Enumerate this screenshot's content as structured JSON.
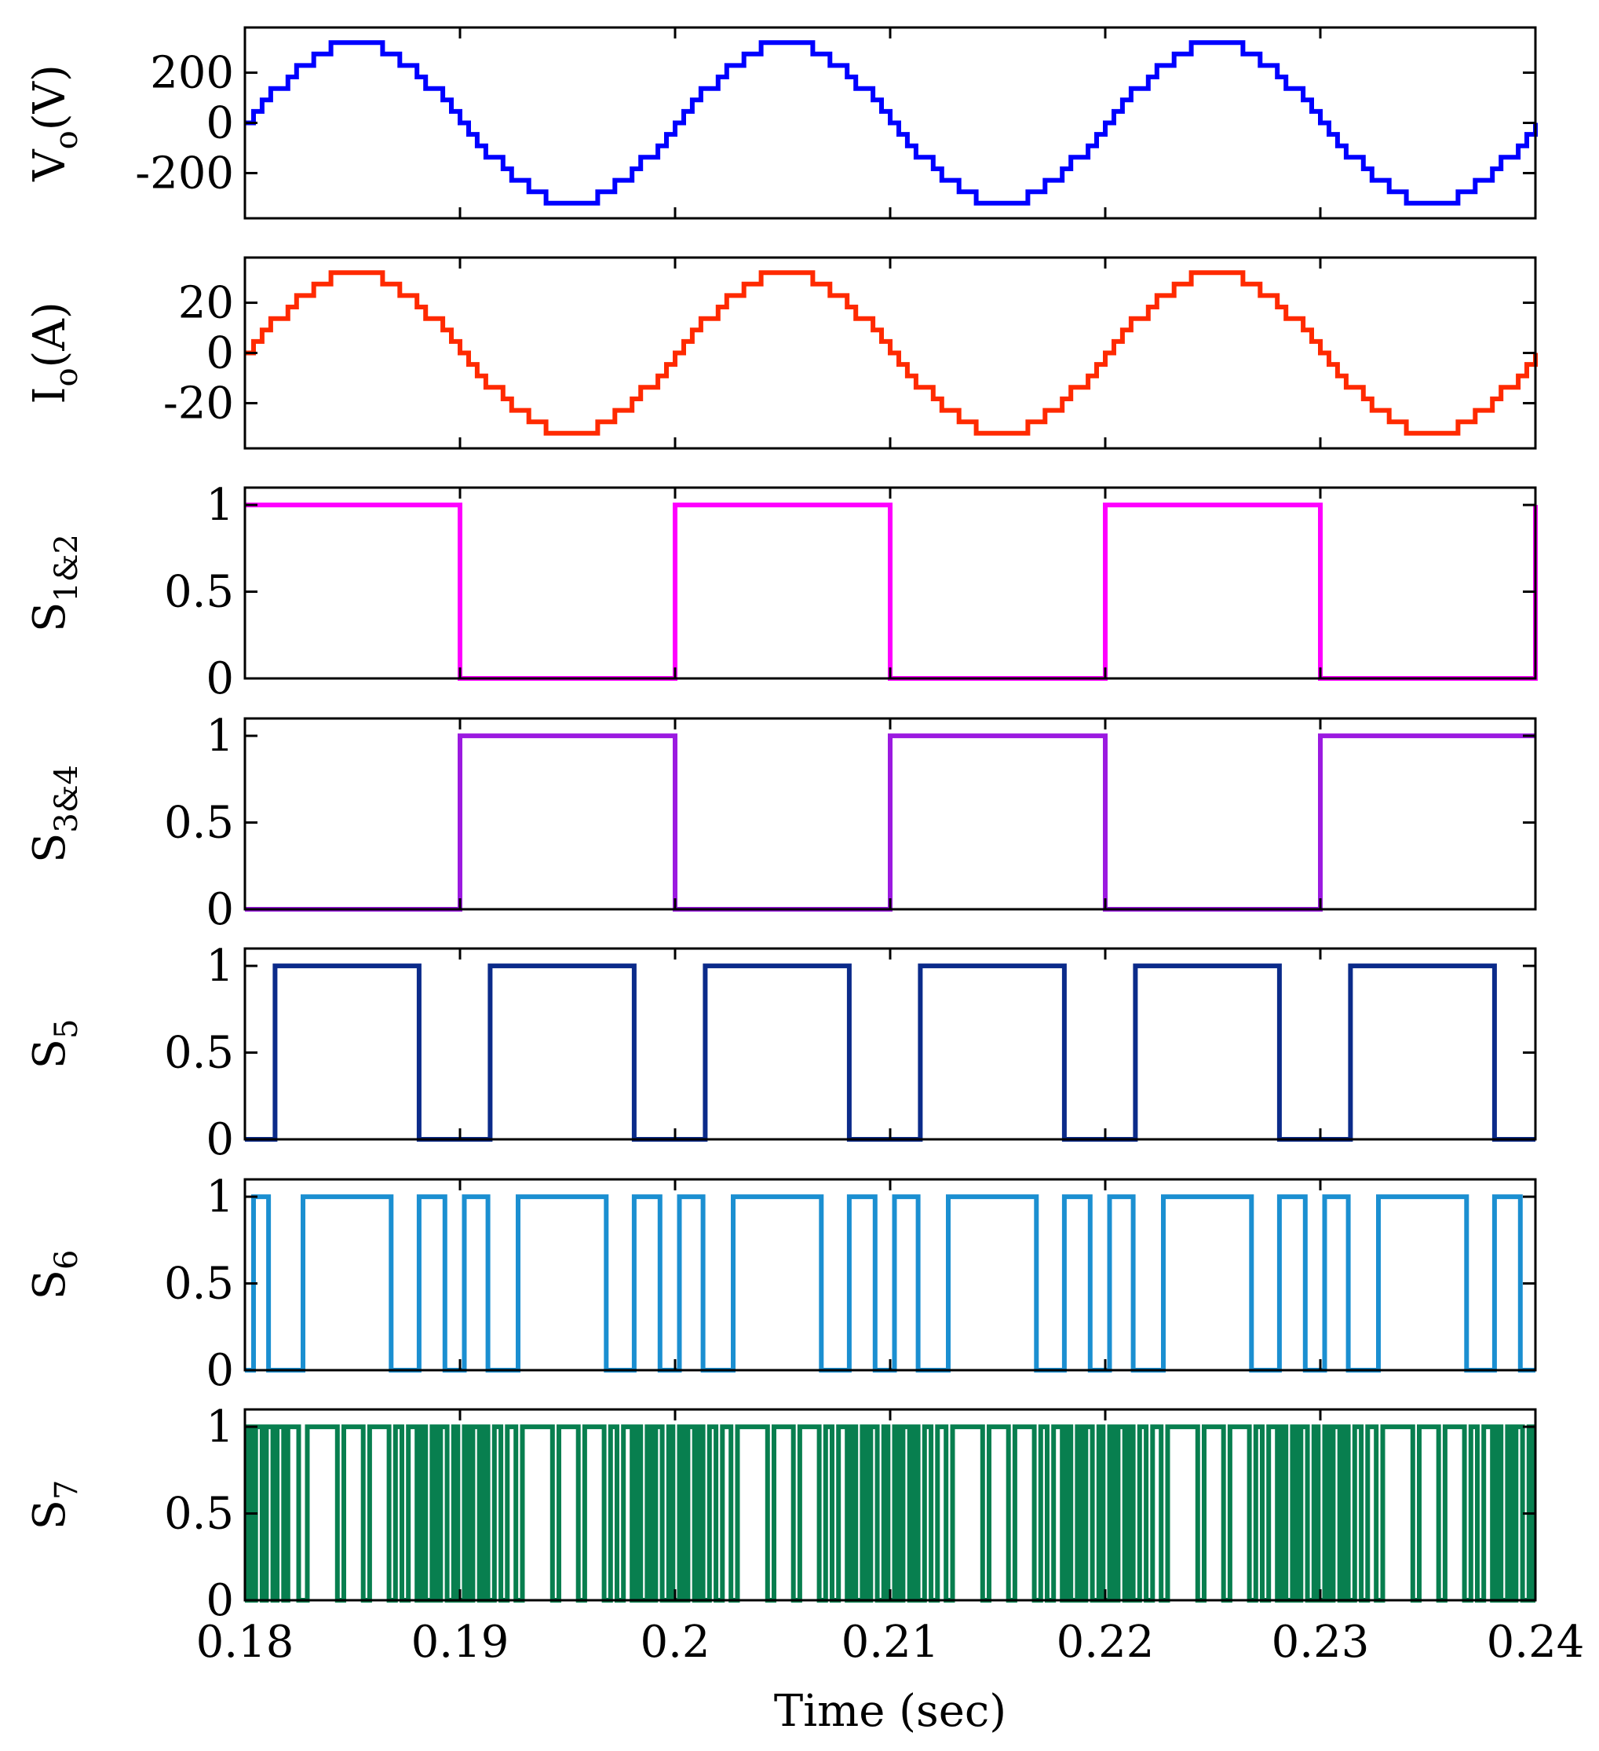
{
  "chart_data": [
    {
      "type": "line",
      "ylabel": "V",
      "ylabel_sub": "o",
      "ylabel_unit": "(V)",
      "color": "#0000ff",
      "ylim": [
        -380,
        380
      ],
      "yticks": [
        200,
        0,
        -200
      ],
      "ytick_labels": [
        "200",
        "0",
        "-200"
      ],
      "waveform": "staircase-sine",
      "amplitude": 320,
      "frequency_hz": 50,
      "levels": 15,
      "x": [
        0.18,
        0.24
      ]
    },
    {
      "type": "line",
      "ylabel": "I",
      "ylabel_sub": "o",
      "ylabel_unit": "(A)",
      "color": "#ff2a00",
      "ylim": [
        -38,
        38
      ],
      "yticks": [
        20,
        0,
        -20
      ],
      "ytick_labels": [
        "20",
        "0",
        "-20"
      ],
      "waveform": "staircase-sine",
      "amplitude": 32,
      "frequency_hz": 50,
      "levels": 15,
      "x": [
        0.18,
        0.24
      ]
    },
    {
      "type": "line",
      "ylabel": "S",
      "ylabel_sub": "1&2",
      "color": "#ff00ff",
      "ylim": [
        0,
        1.1
      ],
      "yticks": [
        1,
        0.5,
        0
      ],
      "ytick_labels": [
        "1",
        "0.5",
        "0"
      ],
      "waveform": "square",
      "high": 1,
      "low": 0,
      "transitions": [
        0.19,
        0.2,
        0.21,
        0.22,
        0.23,
        0.24
      ],
      "initial": 1
    },
    {
      "type": "line",
      "ylabel": "S",
      "ylabel_sub": "3&4",
      "color": "#9b1ae0",
      "ylim": [
        0,
        1.1
      ],
      "yticks": [
        1,
        0.5,
        0
      ],
      "ytick_labels": [
        "1",
        "0.5",
        "0"
      ],
      "waveform": "square",
      "high": 1,
      "low": 0,
      "transitions": [
        0.19,
        0.2,
        0.21,
        0.22,
        0.23
      ],
      "initial": 0
    },
    {
      "type": "line",
      "ylabel": "S",
      "ylabel_sub": "5",
      "color": "#0b2b8a",
      "ylim": [
        0,
        1.1
      ],
      "yticks": [
        1,
        0.5,
        0
      ],
      "ytick_labels": [
        "1",
        "0.5",
        "0"
      ],
      "waveform": "square",
      "high": 1,
      "low": 0,
      "transitions": [
        0.1814,
        0.1881,
        0.1914,
        0.1981,
        0.2014,
        0.2081,
        0.2114,
        0.2181,
        0.2214,
        0.2281,
        0.2314,
        0.2381
      ],
      "initial": 0
    },
    {
      "type": "line",
      "ylabel": "S",
      "ylabel_sub": "6",
      "color": "#1b8fd1",
      "ylim": [
        0,
        1.1
      ],
      "yticks": [
        1,
        0.5,
        0
      ],
      "ytick_labels": [
        "1",
        "0.5",
        "0"
      ],
      "waveform": "square",
      "high": 1,
      "low": 0,
      "transitions": [
        0.1804,
        0.1811,
        0.1827,
        0.1868,
        0.1881,
        0.1893,
        0.1902,
        0.1913,
        0.1927,
        0.1968,
        0.1981,
        0.1993,
        0.2002,
        0.2013,
        0.2027,
        0.2068,
        0.2081,
        0.2093,
        0.2102,
        0.2113,
        0.2127,
        0.2168,
        0.2181,
        0.2193,
        0.2202,
        0.2213,
        0.2227,
        0.2268,
        0.2281,
        0.2293,
        0.2302,
        0.2313,
        0.2327,
        0.2368,
        0.2381,
        0.2393
      ],
      "initial": 0
    },
    {
      "type": "line",
      "ylabel": "S",
      "ylabel_sub": "7",
      "color": "#087f4f",
      "ylim": [
        0,
        1.1
      ],
      "yticks": [
        1,
        0.5,
        0
      ],
      "ytick_labels": [
        "1",
        "0.5",
        "0"
      ],
      "waveform": "square",
      "high": 1,
      "low": 0,
      "transitions": [
        0.1801,
        0.1803,
        0.1805,
        0.1808,
        0.181,
        0.1813,
        0.1815,
        0.1818,
        0.182,
        0.1825,
        0.1829,
        0.1843,
        0.1846,
        0.1855,
        0.1858,
        0.1867,
        0.187,
        0.1873,
        0.1876,
        0.188,
        0.1882,
        0.1884,
        0.1887,
        0.1889,
        0.1891,
        0.1894,
        0.1897,
        0.1899,
        0.1902,
        0.1904,
        0.1906,
        0.1909,
        0.1911,
        0.1913,
        0.1916,
        0.1919,
        0.1922,
        0.1926,
        0.1929,
        0.1943,
        0.1946,
        0.1955,
        0.1958,
        0.1967,
        0.197,
        0.1973,
        0.1976,
        0.198,
        0.1982,
        0.1984,
        0.1987,
        0.1989,
        0.1991,
        0.1994,
        0.1997,
        0.1999,
        0.2002,
        0.2004,
        0.2006,
        0.2009,
        0.2011,
        0.2013,
        0.2016,
        0.2019,
        0.2022,
        0.2026,
        0.2029,
        0.2043,
        0.2046,
        0.2055,
        0.2058,
        0.2067,
        0.207,
        0.2073,
        0.2076,
        0.208,
        0.2082,
        0.2084,
        0.2087,
        0.2089,
        0.2091,
        0.2094,
        0.2097,
        0.2099,
        0.2102,
        0.2104,
        0.2106,
        0.2109,
        0.2111,
        0.2113,
        0.2116,
        0.2119,
        0.2122,
        0.2126,
        0.2129,
        0.2143,
        0.2146,
        0.2155,
        0.2158,
        0.2167,
        0.217,
        0.2173,
        0.2176,
        0.218,
        0.2182,
        0.2184,
        0.2187,
        0.2189,
        0.2191,
        0.2194,
        0.2197,
        0.2199,
        0.2202,
        0.2204,
        0.2206,
        0.2209,
        0.2211,
        0.2213,
        0.2216,
        0.2219,
        0.2222,
        0.2226,
        0.2229,
        0.2243,
        0.2246,
        0.2255,
        0.2258,
        0.2267,
        0.227,
        0.2273,
        0.2276,
        0.228,
        0.2282,
        0.2284,
        0.2287,
        0.2289,
        0.2291,
        0.2294,
        0.2297,
        0.2299,
        0.2302,
        0.2304,
        0.2306,
        0.2309,
        0.2311,
        0.2313,
        0.2316,
        0.2319,
        0.2322,
        0.2326,
        0.2329,
        0.2343,
        0.2346,
        0.2355,
        0.2358,
        0.2367,
        0.237,
        0.2373,
        0.2376,
        0.238,
        0.2382,
        0.2384,
        0.2387,
        0.2389,
        0.2391,
        0.2394,
        0.2397,
        0.2399
      ],
      "initial": 0
    }
  ],
  "xaxis": {
    "xlim": [
      0.18,
      0.24
    ],
    "xticks": [
      0.18,
      0.19,
      0.2,
      0.21,
      0.22,
      0.23,
      0.24
    ],
    "xtick_labels": [
      "0.18",
      "0.19",
      "0.2",
      "0.21",
      "0.22",
      "0.23",
      "0.24"
    ],
    "xlabel": "Time (sec)"
  }
}
